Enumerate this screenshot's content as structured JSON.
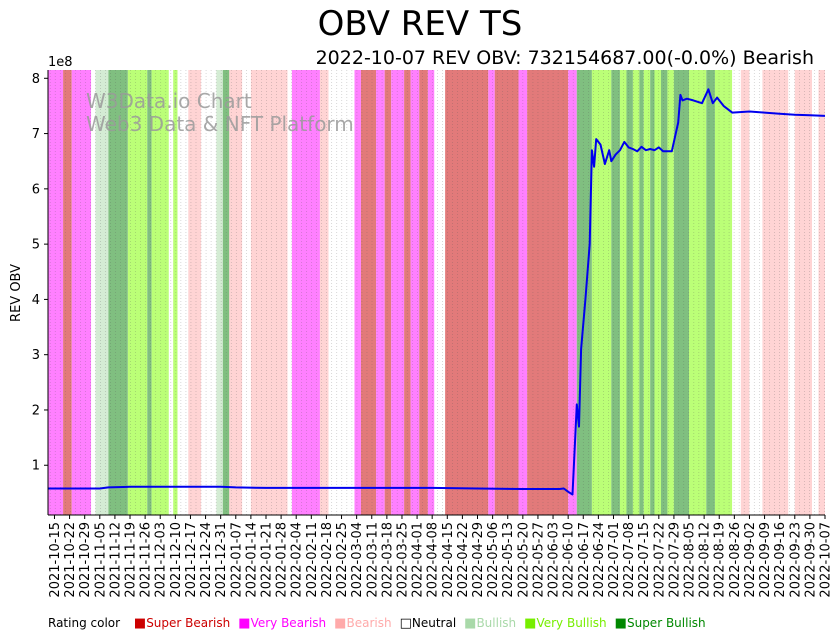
{
  "title": "OBV REV TS",
  "subtitle": "2022-10-07 REV OBV: 732154687.00(-0.0%) Bearish",
  "watermark": [
    "W3Data.io Chart",
    "Web3 Data & NFT Platform"
  ],
  "legend": {
    "label": "Rating color",
    "items": [
      {
        "name": "Super Bearish",
        "color": "#cc0000"
      },
      {
        "name": "Very Bearish",
        "color": "#ff00ff"
      },
      {
        "name": "Bearish",
        "color": "#ffaaaa"
      },
      {
        "name": "Neutral",
        "color": "#000000",
        "outline": true
      },
      {
        "name": "Bullish",
        "color": "#a9d9a9"
      },
      {
        "name": "Very Bullish",
        "color": "#77ee00"
      },
      {
        "name": "Super Bullish",
        "color": "#008800"
      }
    ]
  },
  "chart_data": {
    "type": "line",
    "ylabel": "REV OBV",
    "y_multiplier": "1e8",
    "ylim": [
      0.1,
      8.15
    ],
    "yticks": [
      1,
      2,
      3,
      4,
      5,
      6,
      7,
      8
    ],
    "x_start": "2021-10-12",
    "x_end": "2022-10-07",
    "xtick_labels": [
      "2021-10-15",
      "2021-10-22",
      "2021-10-29",
      "2021-11-05",
      "2021-11-12",
      "2021-11-19",
      "2021-11-26",
      "2021-12-03",
      "2021-12-10",
      "2021-12-17",
      "2021-12-24",
      "2021-12-31",
      "2022-01-07",
      "2022-01-14",
      "2022-01-21",
      "2022-01-28",
      "2022-02-04",
      "2022-02-11",
      "2022-02-18",
      "2022-02-25",
      "2022-03-04",
      "2022-03-11",
      "2022-03-18",
      "2022-03-25",
      "2022-04-01",
      "2022-04-08",
      "2022-04-15",
      "2022-04-22",
      "2022-04-29",
      "2022-05-06",
      "2022-05-13",
      "2022-05-20",
      "2022-05-27",
      "2022-06-03",
      "2022-06-10",
      "2022-06-17",
      "2022-06-24",
      "2022-07-01",
      "2022-07-08",
      "2022-07-15",
      "2022-07-22",
      "2022-07-29",
      "2022-08-05",
      "2022-08-12",
      "2022-08-19",
      "2022-08-26",
      "2022-09-02",
      "2022-09-09",
      "2022-09-16",
      "2022-09-23",
      "2022-09-30",
      "2022-10-07"
    ],
    "rating_colors": {
      "super_bearish": "#e27a7a",
      "very_bearish": "#ff80ff",
      "bearish": "#ffd4d4",
      "neutral": "#ffffff",
      "bullish": "#d4ecd4",
      "very_bullish": "#bbff77",
      "super_bullish": "#80bf80"
    },
    "rating_bands": [
      {
        "from": "2021-10-12",
        "to": "2021-10-19",
        "rating": "very_bearish"
      },
      {
        "from": "2021-10-19",
        "to": "2021-10-23",
        "rating": "super_bearish"
      },
      {
        "from": "2021-10-23",
        "to": "2021-11-01",
        "rating": "very_bearish"
      },
      {
        "from": "2021-11-01",
        "to": "2021-11-03",
        "rating": "neutral"
      },
      {
        "from": "2021-11-03",
        "to": "2021-11-09",
        "rating": "bullish"
      },
      {
        "from": "2021-11-09",
        "to": "2021-11-18",
        "rating": "super_bullish"
      },
      {
        "from": "2021-11-18",
        "to": "2021-11-27",
        "rating": "very_bullish"
      },
      {
        "from": "2021-11-27",
        "to": "2021-11-29",
        "rating": "super_bullish"
      },
      {
        "from": "2021-11-29",
        "to": "2021-12-07",
        "rating": "very_bullish"
      },
      {
        "from": "2021-12-07",
        "to": "2021-12-09",
        "rating": "neutral"
      },
      {
        "from": "2021-12-09",
        "to": "2021-12-11",
        "rating": "very_bullish"
      },
      {
        "from": "2021-12-11",
        "to": "2021-12-16",
        "rating": "neutral"
      },
      {
        "from": "2021-12-16",
        "to": "2021-12-22",
        "rating": "bearish"
      },
      {
        "from": "2021-12-22",
        "to": "2021-12-29",
        "rating": "neutral"
      },
      {
        "from": "2021-12-29",
        "to": "2022-01-01",
        "rating": "bullish"
      },
      {
        "from": "2022-01-01",
        "to": "2022-01-04",
        "rating": "super_bullish"
      },
      {
        "from": "2022-01-04",
        "to": "2022-01-10",
        "rating": "bearish"
      },
      {
        "from": "2022-01-10",
        "to": "2022-01-14",
        "rating": "neutral"
      },
      {
        "from": "2022-01-14",
        "to": "2022-01-31",
        "rating": "bearish"
      },
      {
        "from": "2022-01-31",
        "to": "2022-02-02",
        "rating": "neutral"
      },
      {
        "from": "2022-02-02",
        "to": "2022-02-15",
        "rating": "very_bearish"
      },
      {
        "from": "2022-02-15",
        "to": "2022-02-19",
        "rating": "bearish"
      },
      {
        "from": "2022-02-19",
        "to": "2022-03-03",
        "rating": "neutral"
      },
      {
        "from": "2022-03-03",
        "to": "2022-03-06",
        "rating": "very_bearish"
      },
      {
        "from": "2022-03-06",
        "to": "2022-03-13",
        "rating": "super_bearish"
      },
      {
        "from": "2022-03-13",
        "to": "2022-03-17",
        "rating": "very_bearish"
      },
      {
        "from": "2022-03-17",
        "to": "2022-03-20",
        "rating": "super_bearish"
      },
      {
        "from": "2022-03-20",
        "to": "2022-03-26",
        "rating": "very_bearish"
      },
      {
        "from": "2022-03-26",
        "to": "2022-03-29",
        "rating": "super_bearish"
      },
      {
        "from": "2022-03-29",
        "to": "2022-04-02",
        "rating": "very_bearish"
      },
      {
        "from": "2022-04-02",
        "to": "2022-04-06",
        "rating": "super_bearish"
      },
      {
        "from": "2022-04-06",
        "to": "2022-04-09",
        "rating": "very_bearish"
      },
      {
        "from": "2022-04-09",
        "to": "2022-04-14",
        "rating": "neutral"
      },
      {
        "from": "2022-04-14",
        "to": "2022-05-04",
        "rating": "super_bearish"
      },
      {
        "from": "2022-05-04",
        "to": "2022-05-07",
        "rating": "very_bearish"
      },
      {
        "from": "2022-05-07",
        "to": "2022-05-18",
        "rating": "super_bearish"
      },
      {
        "from": "2022-05-18",
        "to": "2022-05-22",
        "rating": "very_bearish"
      },
      {
        "from": "2022-05-22",
        "to": "2022-06-10",
        "rating": "super_bearish"
      },
      {
        "from": "2022-06-10",
        "to": "2022-06-14",
        "rating": "very_bearish"
      },
      {
        "from": "2022-06-14",
        "to": "2022-06-21",
        "rating": "super_bullish"
      },
      {
        "from": "2022-06-21",
        "to": "2022-06-30",
        "rating": "very_bullish"
      },
      {
        "from": "2022-06-30",
        "to": "2022-07-04",
        "rating": "super_bullish"
      },
      {
        "from": "2022-07-04",
        "to": "2022-07-07",
        "rating": "very_bullish"
      },
      {
        "from": "2022-07-07",
        "to": "2022-07-10",
        "rating": "super_bullish"
      },
      {
        "from": "2022-07-10",
        "to": "2022-07-13",
        "rating": "very_bullish"
      },
      {
        "from": "2022-07-13",
        "to": "2022-07-15",
        "rating": "super_bullish"
      },
      {
        "from": "2022-07-15",
        "to": "2022-07-18",
        "rating": "very_bullish"
      },
      {
        "from": "2022-07-18",
        "to": "2022-07-20",
        "rating": "super_bullish"
      },
      {
        "from": "2022-07-20",
        "to": "2022-07-23",
        "rating": "very_bullish"
      },
      {
        "from": "2022-07-23",
        "to": "2022-07-26",
        "rating": "super_bullish"
      },
      {
        "from": "2022-07-26",
        "to": "2022-07-29",
        "rating": "very_bullish"
      },
      {
        "from": "2022-07-29",
        "to": "2022-08-05",
        "rating": "super_bullish"
      },
      {
        "from": "2022-08-05",
        "to": "2022-08-13",
        "rating": "very_bullish"
      },
      {
        "from": "2022-08-13",
        "to": "2022-08-17",
        "rating": "super_bullish"
      },
      {
        "from": "2022-08-17",
        "to": "2022-08-25",
        "rating": "very_bullish"
      },
      {
        "from": "2022-08-25",
        "to": "2022-08-29",
        "rating": "neutral"
      },
      {
        "from": "2022-08-29",
        "to": "2022-09-02",
        "rating": "bearish"
      },
      {
        "from": "2022-09-02",
        "to": "2022-09-08",
        "rating": "neutral"
      },
      {
        "from": "2022-09-08",
        "to": "2022-09-20",
        "rating": "bearish"
      },
      {
        "from": "2022-09-20",
        "to": "2022-09-23",
        "rating": "neutral"
      },
      {
        "from": "2022-09-23",
        "to": "2022-10-01",
        "rating": "bearish"
      },
      {
        "from": "2022-10-01",
        "to": "2022-10-04",
        "rating": "neutral"
      },
      {
        "from": "2022-10-04",
        "to": "2022-10-07",
        "rating": "bearish"
      }
    ],
    "series": [
      {
        "color": "#0000ee",
        "points": [
          [
            "2021-10-12",
            0.58
          ],
          [
            "2021-10-29",
            0.58
          ],
          [
            "2021-11-05",
            0.58
          ],
          [
            "2021-11-09",
            0.6
          ],
          [
            "2021-11-19",
            0.61
          ],
          [
            "2021-12-10",
            0.61
          ],
          [
            "2021-12-31",
            0.61
          ],
          [
            "2022-01-07",
            0.6
          ],
          [
            "2022-01-21",
            0.59
          ],
          [
            "2022-02-25",
            0.59
          ],
          [
            "2022-04-08",
            0.59
          ],
          [
            "2022-04-29",
            0.58
          ],
          [
            "2022-05-20",
            0.57
          ],
          [
            "2022-06-06",
            0.57
          ],
          [
            "2022-06-08",
            0.58
          ],
          [
            "2022-06-10",
            0.52
          ],
          [
            "2022-06-12",
            0.47
          ],
          [
            "2022-06-14",
            2.1
          ],
          [
            "2022-06-15",
            1.7
          ],
          [
            "2022-06-16",
            3.1
          ],
          [
            "2022-06-18",
            4.0
          ],
          [
            "2022-06-20",
            5.0
          ],
          [
            "2022-06-21",
            6.7
          ],
          [
            "2022-06-22",
            6.4
          ],
          [
            "2022-06-23",
            6.9
          ],
          [
            "2022-06-25",
            6.8
          ],
          [
            "2022-06-27",
            6.45
          ],
          [
            "2022-06-29",
            6.7
          ],
          [
            "2022-06-30",
            6.5
          ],
          [
            "2022-07-02",
            6.62
          ],
          [
            "2022-07-04",
            6.7
          ],
          [
            "2022-07-06",
            6.85
          ],
          [
            "2022-07-08",
            6.75
          ],
          [
            "2022-07-10",
            6.72
          ],
          [
            "2022-07-12",
            6.68
          ],
          [
            "2022-07-14",
            6.76
          ],
          [
            "2022-07-16",
            6.7
          ],
          [
            "2022-07-18",
            6.72
          ],
          [
            "2022-07-20",
            6.7
          ],
          [
            "2022-07-22",
            6.75
          ],
          [
            "2022-07-24",
            6.68
          ],
          [
            "2022-07-26",
            6.68
          ],
          [
            "2022-07-28",
            6.68
          ],
          [
            "2022-07-31",
            7.2
          ],
          [
            "2022-08-01",
            7.7
          ],
          [
            "2022-08-02",
            7.6
          ],
          [
            "2022-08-04",
            7.63
          ],
          [
            "2022-08-07",
            7.6
          ],
          [
            "2022-08-11",
            7.55
          ],
          [
            "2022-08-14",
            7.8
          ],
          [
            "2022-08-16",
            7.55
          ],
          [
            "2022-08-18",
            7.65
          ],
          [
            "2022-08-21",
            7.5
          ],
          [
            "2022-08-25",
            7.38
          ],
          [
            "2022-09-02",
            7.4
          ],
          [
            "2022-09-09",
            7.38
          ],
          [
            "2022-09-16",
            7.36
          ],
          [
            "2022-09-23",
            7.34
          ],
          [
            "2022-09-30",
            7.33
          ],
          [
            "2022-10-07",
            7.32
          ]
        ]
      }
    ]
  }
}
